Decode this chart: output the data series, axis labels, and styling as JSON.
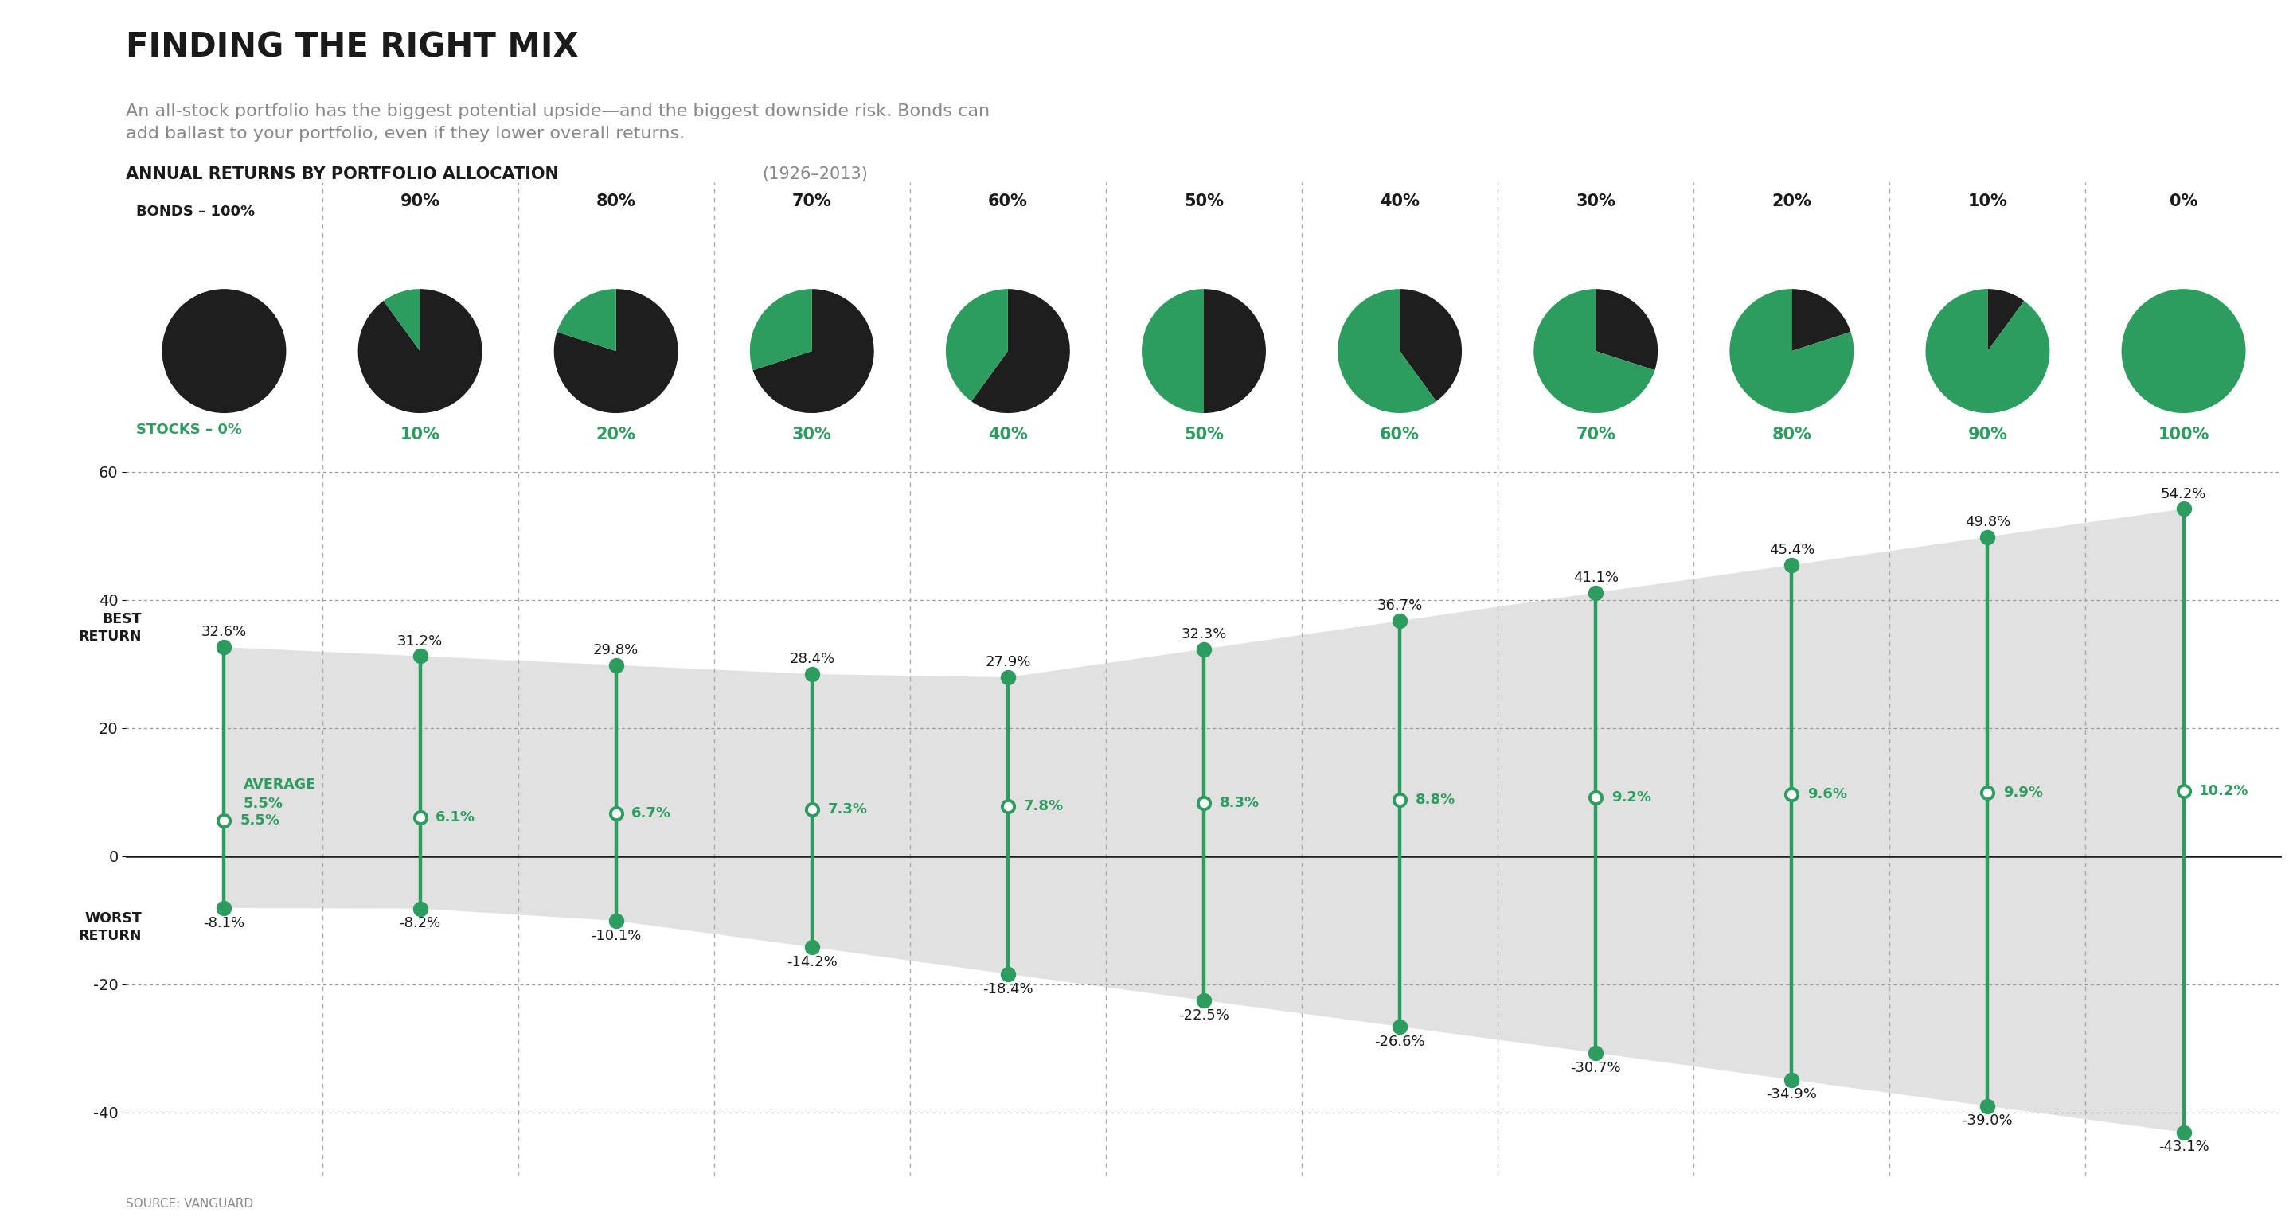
{
  "title": "FINDING THE RIGHT MIX",
  "subtitle": "An all-stock portfolio has the biggest potential upside—and the biggest downside risk. Bonds can\nadd ballast to your portfolio, even if they lower overall returns.",
  "section_label": "ANNUAL RETURNS BY PORTFOLIO ALLOCATION",
  "section_year": "(1926–2013)",
  "source": "SOURCE: VANGUARD",
  "bonds_pct": [
    100,
    90,
    80,
    70,
    60,
    50,
    40,
    30,
    20,
    10,
    0
  ],
  "stocks_pct": [
    0,
    10,
    20,
    30,
    40,
    50,
    60,
    70,
    80,
    90,
    100
  ],
  "best": [
    32.6,
    31.2,
    29.8,
    28.4,
    27.9,
    32.3,
    36.7,
    41.1,
    45.4,
    49.8,
    54.2
  ],
  "avg": [
    5.5,
    6.1,
    6.7,
    7.3,
    7.8,
    8.3,
    8.8,
    9.2,
    9.6,
    9.9,
    10.2
  ],
  "worst": [
    -8.1,
    -8.2,
    -10.1,
    -14.2,
    -18.4,
    -22.5,
    -26.6,
    -30.7,
    -34.9,
    -39.0,
    -43.1
  ],
  "green": "#2d9c5f",
  "black": "#1a1a1a",
  "text_gray": "#888888",
  "div_color": "#aaaaaa",
  "shade_color": "#d8d8d8",
  "ylim": [
    -50,
    62
  ],
  "yticks": [
    -40,
    -20,
    0,
    20,
    40,
    60
  ]
}
